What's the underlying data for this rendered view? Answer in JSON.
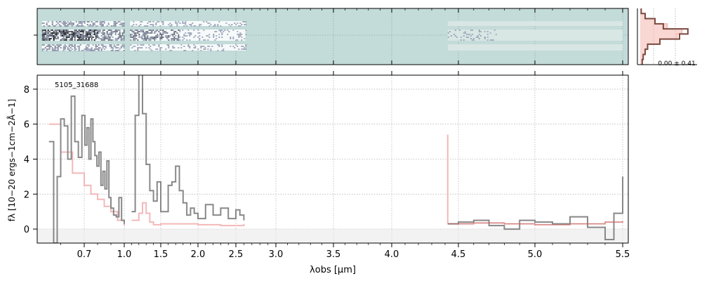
{
  "chart_data": [
    {
      "panel": "2d-spectrum",
      "type": "heatmap",
      "background_color": "#c3dbd9",
      "segments_um": [
        [
          0.52,
          1.0
        ],
        [
          1.08,
          2.62
        ],
        [
          4.42,
          5.5
        ]
      ],
      "trace_bands": [
        "upper",
        "center",
        "lower"
      ],
      "x_scale": "nonlinear (matches lower panel)",
      "grid": true
    },
    {
      "panel": "profile",
      "type": "line",
      "xlabel_text": "0.00 ± 0.41",
      "model_color": "#f4b6ae",
      "data_color": "#7b4a40",
      "profile_x": [
        0.02,
        0.1,
        0.3,
        0.55,
        0.85,
        0.75,
        0.4,
        0.15,
        0.1,
        0.06,
        0.04
      ],
      "profile_rows": 11
    },
    {
      "panel": "1d-spectrum",
      "type": "line",
      "annotation": "5105_31688",
      "xlabel": "λobs [μm]",
      "ylabel": "fλ [10−20 ergs−1cm−2Å−1]",
      "xticks": [
        0.7,
        1.0,
        1.5,
        2.0,
        2.5,
        3.0,
        3.5,
        4.0,
        4.5,
        5.0,
        5.5
      ],
      "xtick_labels": [
        "0.7",
        "1.0",
        "1.5",
        "2.0",
        "2.5",
        "3.0",
        "3.5",
        "4.0",
        "4.5",
        "5.0",
        "5.5"
      ],
      "yticks": [
        0,
        2,
        4,
        6,
        8
      ],
      "ylim": [
        -0.8,
        8.8
      ],
      "xlim": [
        0.5,
        5.52
      ],
      "grid": true,
      "colors": {
        "data": "#888888",
        "model": "#f4b8b8",
        "fit_red": "#c06060"
      },
      "series": [
        {
          "role": "observed",
          "x": [
            0.55,
            0.57,
            0.585,
            0.6,
            0.615,
            0.63,
            0.645,
            0.66,
            0.675,
            0.69,
            0.705,
            0.72,
            0.735,
            0.75,
            0.765,
            0.78,
            0.795,
            0.81,
            0.825,
            0.84,
            0.855,
            0.87,
            0.885,
            0.9,
            0.92,
            0.94,
            0.96,
            0.98,
            1.0
          ],
          "y": [
            5.0,
            -0.8,
            3.0,
            6.3,
            5.9,
            4.0,
            7.6,
            5.0,
            4.1,
            6.5,
            4.8,
            5.8,
            4.0,
            6.3,
            5.0,
            4.2,
            3.6,
            4.4,
            2.5,
            3.3,
            2.3,
            3.9,
            1.8,
            1.2,
            0.8,
            0.7,
            1.8,
            0.5,
            0.3
          ]
        },
        {
          "role": "observed",
          "x": [
            1.1,
            1.15,
            1.2,
            1.25,
            1.3,
            1.35,
            1.4,
            1.45,
            1.5,
            1.55,
            1.6,
            1.65,
            1.7,
            1.75,
            1.8,
            1.85,
            1.9,
            1.95,
            2.0,
            2.1,
            2.2,
            2.3,
            2.4,
            2.5,
            2.55,
            2.6
          ],
          "y": [
            1.0,
            6.5,
            9.0,
            6.6,
            3.7,
            2.2,
            1.6,
            2.7,
            1.0,
            1.0,
            2.5,
            2.7,
            3.6,
            2.2,
            1.5,
            0.8,
            1.2,
            0.9,
            0.6,
            1.4,
            0.8,
            1.2,
            0.6,
            1.1,
            0.8,
            0.5
          ]
        },
        {
          "role": "observed",
          "x": [
            4.42,
            4.5,
            4.6,
            4.7,
            4.8,
            4.9,
            5.0,
            5.1,
            5.2,
            5.3,
            5.4,
            5.45,
            5.5
          ],
          "y": [
            0.3,
            0.4,
            0.5,
            0.2,
            0.0,
            0.5,
            0.4,
            0.3,
            0.7,
            0.1,
            -0.6,
            0.9,
            3.0
          ]
        },
        {
          "role": "model",
          "x": [
            0.55,
            0.6,
            0.65,
            0.7,
            0.75,
            0.8,
            0.85,
            0.9,
            0.95,
            1.0
          ],
          "y": [
            6.0,
            4.4,
            3.2,
            2.5,
            2.0,
            1.7,
            1.3,
            1.0,
            0.5,
            0.2
          ]
        },
        {
          "role": "model",
          "x": [
            1.1,
            1.2,
            1.25,
            1.3,
            1.35,
            1.4,
            1.5,
            1.7,
            2.0,
            2.3,
            2.6
          ],
          "y": [
            0.5,
            0.9,
            1.5,
            0.9,
            0.4,
            0.25,
            0.3,
            0.3,
            0.25,
            0.2,
            0.3
          ]
        },
        {
          "role": "model",
          "x": [
            4.42,
            4.6,
            4.8,
            5.0,
            5.2,
            5.4,
            5.5
          ],
          "y": [
            0.3,
            0.35,
            0.3,
            0.25,
            0.3,
            0.4,
            0.45
          ]
        }
      ]
    }
  ]
}
